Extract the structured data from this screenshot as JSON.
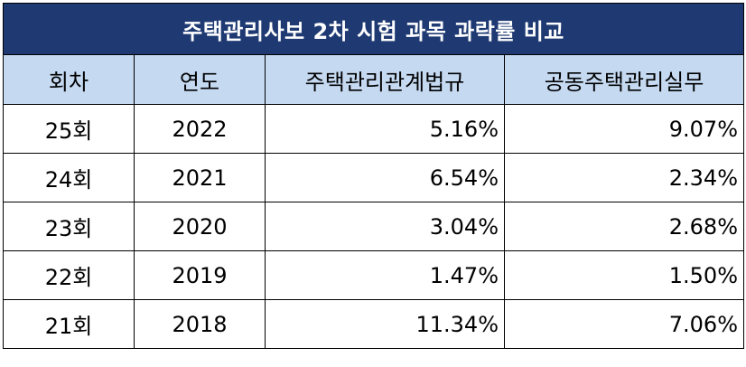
{
  "table": {
    "title": "주택관리사보 2차 시험 과목 과락률 비교",
    "headers": [
      "회차",
      "연도",
      "주택관리관계법규",
      "공동주택관리실무"
    ],
    "rows": [
      [
        "25회",
        "2022",
        "5.16%",
        "9.07%"
      ],
      [
        "24회",
        "2021",
        "6.54%",
        "2.34%"
      ],
      [
        "23회",
        "2020",
        "3.04%",
        "2.68%"
      ],
      [
        "22회",
        "2019",
        "1.47%",
        "1.50%"
      ],
      [
        "21회",
        "2018",
        "11.34%",
        "7.06%"
      ]
    ]
  },
  "colors": {
    "title_bg": "#1f3a73",
    "header_bg": "#c5d9f1",
    "border": "#000000"
  }
}
